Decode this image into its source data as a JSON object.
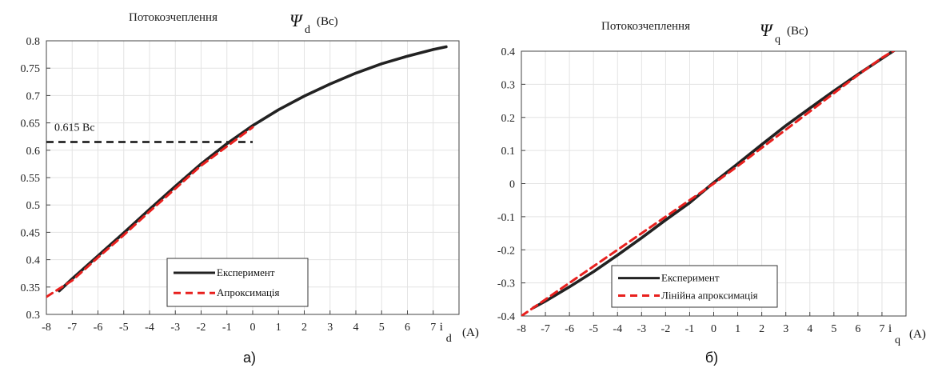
{
  "chart_data": [
    {
      "type": "line",
      "title_text": "Потокозчеплення",
      "title_symbol": "Ψ",
      "title_subscript": "d",
      "title_unit": "(Вс)",
      "xlabel_symbol": "i",
      "xlabel_subscript": "d",
      "xlabel_unit": "(A)",
      "xlim": [
        -8,
        8
      ],
      "ylim": [
        0.3,
        0.8
      ],
      "xticks": [
        "-8",
        "-7",
        "-6",
        "-5",
        "-4",
        "-3",
        "-2",
        "-1",
        "0",
        "1",
        "2",
        "3",
        "4",
        "5",
        "6",
        "7"
      ],
      "yticks": [
        "0.3",
        "0.35",
        "0.4",
        "0.45",
        "0.5",
        "0.55",
        "0.6",
        "0.65",
        "0.7",
        "0.75",
        "0.8"
      ],
      "grid": true,
      "legend_position": "bottom-right",
      "annotation": {
        "text": "0.615 Вс",
        "y": 0.615,
        "x_from": -8,
        "x_to": 0
      },
      "series": [
        {
          "name": "Експеримент",
          "color": "#222222",
          "style": "solid",
          "x": [
            -7.5,
            -7,
            -6,
            -5,
            -4,
            -3,
            -2,
            -1,
            0,
            1,
            2,
            3,
            4,
            5,
            6,
            7,
            7.5
          ],
          "y": [
            0.343,
            0.365,
            0.407,
            0.449,
            0.492,
            0.534,
            0.575,
            0.612,
            0.645,
            0.674,
            0.699,
            0.721,
            0.741,
            0.758,
            0.772,
            0.784,
            0.789
          ]
        },
        {
          "name": "Апроксимація",
          "color": "#e8201e",
          "style": "dashed",
          "x": [
            -8,
            -7,
            -6,
            -5,
            -4,
            -3,
            -2,
            -1,
            0
          ],
          "y": [
            0.332,
            0.362,
            0.404,
            0.445,
            0.488,
            0.53,
            0.572,
            0.607,
            0.642
          ]
        }
      ],
      "caption": "а)"
    },
    {
      "type": "line",
      "title_text": "Потокозчеплення",
      "title_symbol": "Ψ",
      "title_subscript": "q",
      "title_unit": "(Вс)",
      "xlabel_symbol": "i",
      "xlabel_subscript": "q",
      "xlabel_unit": "(A)",
      "xlim": [
        -8,
        8
      ],
      "ylim": [
        -0.4,
        0.4
      ],
      "xticks": [
        "-8",
        "-7",
        "-6",
        "-5",
        "-4",
        "-3",
        "-2",
        "-1",
        "0",
        "1",
        "2",
        "3",
        "4",
        "5",
        "6",
        "7"
      ],
      "yticks": [
        "-0.4",
        "-0.3",
        "-0.2",
        "-0.1",
        "0",
        "0.1",
        "0.2",
        "0.3",
        "0.4"
      ],
      "grid": true,
      "legend_position": "bottom-left",
      "series": [
        {
          "name": "Експеримент",
          "color": "#222222",
          "style": "solid",
          "x": [
            -7.5,
            -7,
            -6,
            -5,
            -4,
            -3,
            -2,
            -1,
            0,
            1,
            2,
            3,
            4,
            5,
            6,
            7,
            7.5
          ],
          "y": [
            -0.375,
            -0.355,
            -0.312,
            -0.266,
            -0.216,
            -0.164,
            -0.11,
            -0.058,
            0.003,
            0.06,
            0.118,
            0.175,
            0.228,
            0.28,
            0.33,
            0.378,
            0.402
          ]
        },
        {
          "name": "Лінійна апроксимація",
          "color": "#e8201e",
          "style": "dashed",
          "x": [
            -8,
            -7,
            -6,
            -5,
            -4,
            -3,
            -2,
            -1,
            0,
            1,
            2,
            3,
            4,
            5,
            6,
            7,
            7.5
          ],
          "y": [
            -0.4,
            -0.35,
            -0.3,
            -0.25,
            -0.2,
            -0.15,
            -0.1,
            -0.05,
            0.0,
            0.053,
            0.108,
            0.163,
            0.218,
            0.273,
            0.328,
            0.38,
            0.402
          ]
        }
      ],
      "caption": "б)"
    }
  ]
}
